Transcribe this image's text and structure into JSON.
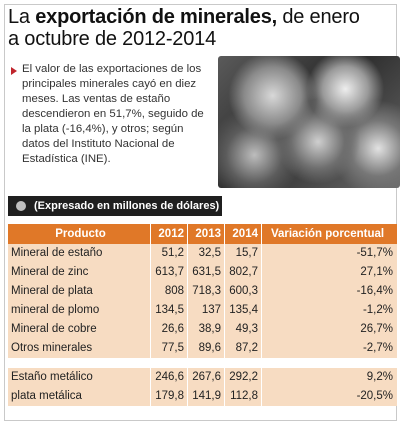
{
  "header": {
    "title_prefix": "La",
    "title_bold": "exportación de minerales,",
    "title_line1_rest": "de enero",
    "title_line2": "a octubre de 2012-2014"
  },
  "description": "El valor de las exportaciones de los principales minerales cayó en diez meses. Las ventas de estaño descendieron en 51,7%, seguido de la plata (-16,4%), y otros; según datos del Instituto Nacional de Estadística (INE).",
  "units_label": "(Expresado en millones de dólares)",
  "table": {
    "headers": [
      "Producto",
      "2012",
      "2013",
      "2014",
      "Variación porcentual"
    ],
    "rows": [
      [
        "Mineral de estaño",
        "51,2",
        "32,5",
        "15,7",
        "-51,7%"
      ],
      [
        "Mineral de zinc",
        "613,7",
        "631,5",
        "802,7",
        "27,1%"
      ],
      [
        "Mineral de plata",
        "808",
        "718,3",
        "600,3",
        "-16,4%"
      ],
      [
        "mineral de plomo",
        "134,5",
        "137",
        "135,4",
        "-1,2%"
      ],
      [
        "Mineral de cobre",
        "26,6",
        "38,9",
        "49,3",
        "26,7%"
      ],
      [
        "Otros minerales",
        "77,5",
        "89,6",
        "87,2",
        "-2,7%"
      ]
    ],
    "rows_metal": [
      [
        "Estaño metálico",
        "246,6",
        "267,6",
        "292,2",
        "9,2%"
      ],
      [
        "plata metálica",
        "179,8",
        "141,9",
        "112,8",
        "-20,5%"
      ]
    ]
  },
  "colors": {
    "header_orange": "#e07828",
    "row_light": "#f7dcc2",
    "bullet_red": "#c0242c",
    "units_bar": "#1f1f1f"
  }
}
